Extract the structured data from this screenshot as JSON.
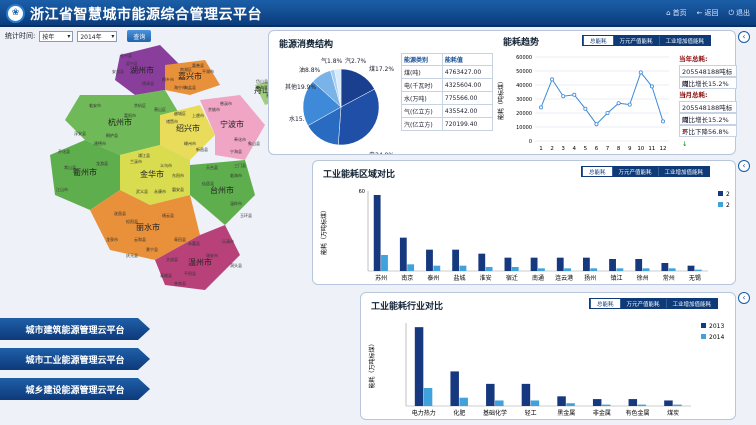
{
  "header": {
    "title": "浙江省智慧城市能源综合管理云平台",
    "nav": {
      "home": "首页",
      "back": "返回",
      "logout": "退出"
    }
  },
  "filter": {
    "label": "统计时间:",
    "period": "按年",
    "year": "2014年",
    "query": "查询"
  },
  "map": {
    "cities": [
      "湖州市",
      "嘉兴市",
      "杭州市",
      "绍兴市",
      "舟山市",
      "宁波市",
      "金华市",
      "衢州市",
      "台州市",
      "丽水市",
      "温州市"
    ],
    "districts": [
      "吴兴区",
      "长兴县",
      "德清县",
      "安吉县",
      "南湖区",
      "平湖市",
      "海宁市",
      "桐乡市",
      "嘉善县",
      "海盐县",
      "余杭区",
      "萧山区",
      "富阳市",
      "临安市",
      "桐庐县",
      "淳安县",
      "建德市",
      "上虞市",
      "诸暨市",
      "嵊州市",
      "新昌县",
      "越城区",
      "定海区",
      "普陀区",
      "岱山县",
      "慈溪市",
      "余姚市",
      "奉化市",
      "宁海县",
      "象山县",
      "兰溪市",
      "义乌市",
      "东阳市",
      "永康市",
      "武义县",
      "浦江县",
      "磐安县",
      "江山市",
      "龙游县",
      "常山县",
      "开化县",
      "临海市",
      "温岭市",
      "天台县",
      "仙居县",
      "三门县",
      "玉环县",
      "龙泉市",
      "遂昌县",
      "松阳县",
      "云和县",
      "庆元县",
      "景宁县",
      "缙云县",
      "青田县",
      "瑞安市",
      "乐清市",
      "永嘉县",
      "平阳县",
      "苍南县",
      "文成县",
      "泰顺县",
      "洞头县"
    ]
  },
  "side_buttons": [
    "城市建筑能源管理云平台",
    "城市工业能源管理云平台",
    "城乡建设能源管理云平台"
  ],
  "energy_struct": {
    "title": "能源消费结构",
    "table_head": [
      "能源类别",
      "能耗值"
    ],
    "rows": [
      [
        "煤(吨)",
        "4763427.00"
      ],
      [
        "电(千瓦时)",
        "4325604.00"
      ],
      [
        "水(万吨)",
        "775566.00"
      ],
      [
        "气(亿立方)",
        "435542.00"
      ],
      [
        "汽(亿立方)",
        "720199.40"
      ]
    ],
    "pie": [
      {
        "label": "煤17.2%",
        "value": 17.2,
        "color": "#1a3f8f"
      },
      {
        "label": "电34.0%",
        "value": 34.0,
        "color": "#1f4fa6"
      },
      {
        "label": "水15.7%",
        "value": 15.7,
        "color": "#2a6bc2"
      },
      {
        "label": "其他19.9%",
        "value": 19.9,
        "color": "#3f8ad8"
      },
      {
        "label": "油8.8%",
        "value": 8.8,
        "color": "#79b3e8"
      },
      {
        "label": "气1.8%",
        "value": 1.8,
        "color": "#a9d0f2"
      },
      {
        "label": "汽2.7%",
        "value": 2.7,
        "color": "#d8ebfb"
      }
    ]
  },
  "trend": {
    "title": "能耗趋势",
    "tabs": [
      "总能耗",
      "万元产值能耗",
      "工业增加值能耗"
    ],
    "ylabel": "能耗（吨标煤）",
    "yticks": [
      "60000",
      "50000",
      "40000",
      "30000",
      "20000",
      "10000",
      "0"
    ],
    "ymax": 60000,
    "x": [
      "1",
      "2",
      "3",
      "4",
      "5",
      "6",
      "7",
      "8",
      "9",
      "10",
      "11",
      "12"
    ],
    "values": [
      24000,
      44000,
      32000,
      33000,
      23000,
      12000,
      20000,
      27000,
      26000,
      49000,
      39000,
      14000
    ],
    "year_total_label": "当年总耗:",
    "year_total": "205548188吨标煤",
    "year_growth": "同比增长15.2%",
    "month_total_label": "当月总耗:",
    "month_total": "205548188吨标煤",
    "month_growth": "同比增长15.2%",
    "month_ring": "环比下降56.8%"
  },
  "region": {
    "title": "工业能耗区域对比",
    "tabs": [
      "总能耗",
      "万元产值能耗",
      "工业增加值能耗"
    ],
    "ylabel": "能耗（万吨标煤）",
    "ytick_top": "60",
    "ymax": 60,
    "legend": [
      "2013",
      "2014"
    ],
    "colors": [
      "#16387e",
      "#3fa2dc"
    ],
    "categories": [
      "苏州",
      "南京",
      "泰州",
      "盐城",
      "淮安",
      "宿迁",
      "南通",
      "连云港",
      "扬州",
      "镇江",
      "徐州",
      "常州",
      "无锡"
    ],
    "series": [
      {
        "name": "2013",
        "values": [
          57,
          25,
          16,
          16,
          13,
          10,
          10,
          10,
          10,
          9,
          9,
          6,
          4
        ]
      },
      {
        "name": "2014",
        "values": [
          12,
          5,
          4,
          4,
          3,
          3,
          2,
          2,
          2,
          2,
          2,
          2,
          1
        ]
      }
    ]
  },
  "industry": {
    "title": "工业能耗行业对比",
    "tabs": [
      "总能耗",
      "万元产值能耗",
      "工业增加值能耗"
    ],
    "ylabel": "能耗（万吨标煤）",
    "ymax": 60,
    "legend": [
      "2013",
      "2014"
    ],
    "colors": [
      "#16387e",
      "#3fa2dc"
    ],
    "categories": [
      "电力热力",
      "化肥",
      "基础化学",
      "轻工",
      "黑金属",
      "非金属",
      "有色金属",
      "煤炭"
    ],
    "series": [
      {
        "name": "2013",
        "values": [
          57,
          25,
          16,
          16,
          7,
          5,
          5,
          4
        ]
      },
      {
        "name": "2014",
        "values": [
          13,
          6,
          4,
          4,
          2,
          1,
          1,
          1
        ]
      }
    ]
  }
}
